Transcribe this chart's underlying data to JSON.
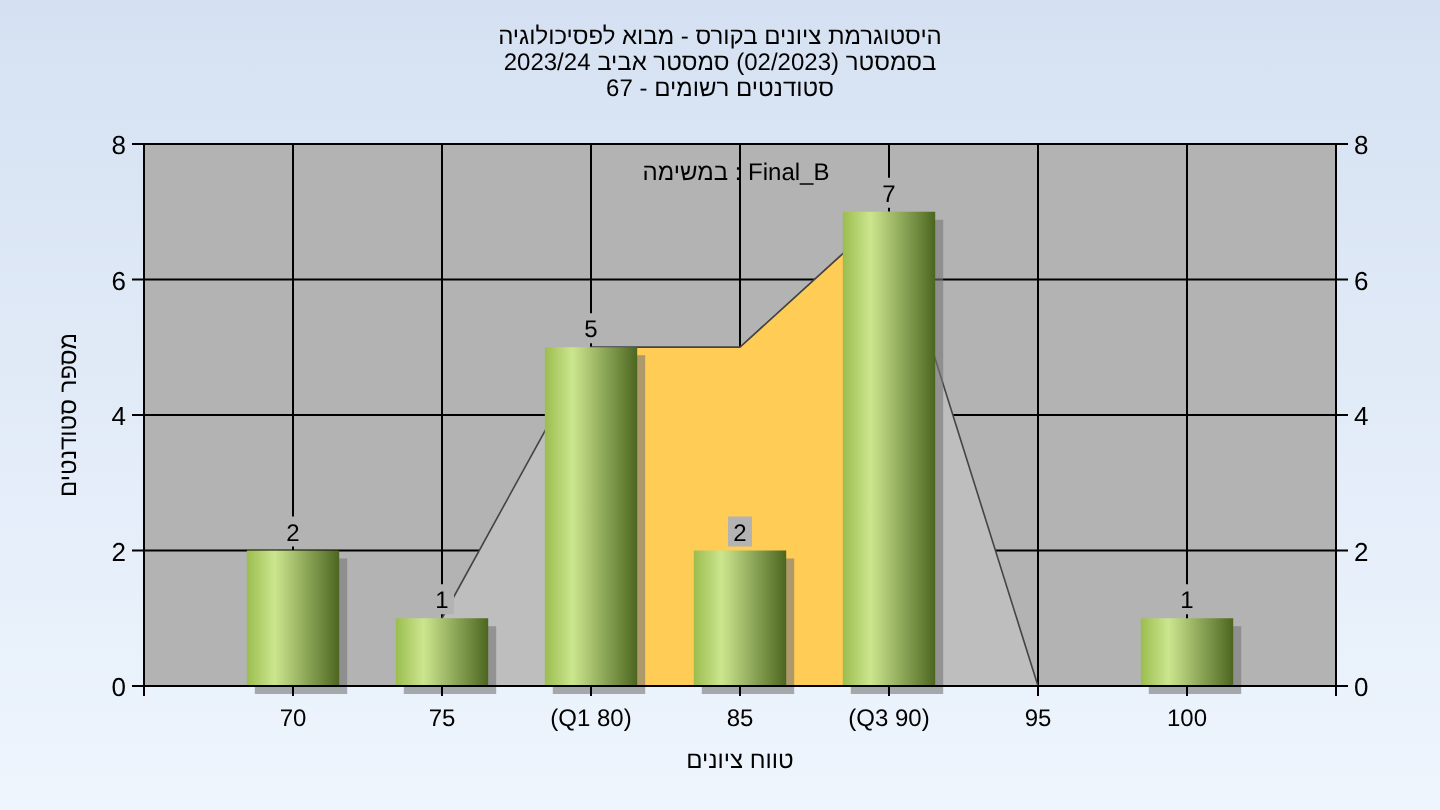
{
  "chart_data": {
    "type": "bar",
    "title": "היסטוגרמת ציונים בקורס - מבוא לפסיכולוגיה",
    "subtitle": "בסמסטר  (02/2023)  סמסטר אביב 2023/24",
    "annotations": [
      "סטודנטים רשומים - 67",
      "Final_B : במשימה"
    ],
    "xlabel": "טווח ציונים",
    "ylabel": "מספר סטודנטים",
    "categories": [
      "70",
      "75",
      "(Q1 80)",
      "85",
      "(Q3 90)",
      "95",
      "100"
    ],
    "series": [
      {
        "type": "area",
        "color": "#bebebe",
        "values": [
          null,
          1,
          5,
          5,
          7,
          0,
          null
        ]
      },
      {
        "type": "area",
        "color": "#ffcc55",
        "values": [
          null,
          null,
          5,
          5,
          7,
          null,
          null
        ]
      },
      {
        "color": "#9bbd4f",
        "values": [
          2,
          1,
          5,
          2,
          7,
          0,
          1
        ],
        "value_labels": [
          "2",
          "1",
          "5",
          "2",
          "7",
          null,
          "1"
        ]
      }
    ],
    "ylim": [
      0,
      8
    ],
    "yticks": [
      0,
      2,
      4,
      6,
      8
    ],
    "y2lim": [
      0,
      8
    ],
    "y2ticks": [
      0,
      2,
      4,
      6,
      8
    ],
    "grid": true
  }
}
